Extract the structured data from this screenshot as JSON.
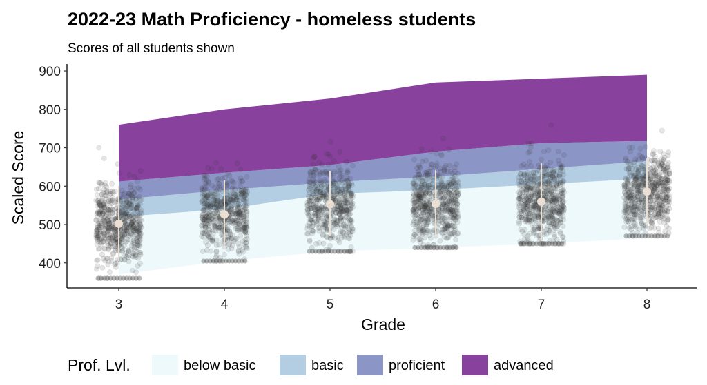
{
  "chart_data": {
    "type": "area",
    "title": "2022-23 Math Proficiency - homeless students",
    "subtitle": "Scores of all students shown",
    "xlabel": "Grade",
    "ylabel": "Scaled Score",
    "categories": [
      "3",
      "4",
      "5",
      "6",
      "7",
      "8"
    ],
    "ylim": [
      335,
      918
    ],
    "yticks": [
      400,
      500,
      600,
      700,
      800,
      900
    ],
    "grid": false,
    "legend": {
      "title": "Prof. Lvl.",
      "position": "bottom",
      "entries": [
        "below basic",
        "basic",
        "proficient",
        "advanced"
      ]
    },
    "bands": [
      {
        "name": "below basic",
        "color": "#eef9fb",
        "lower": [
          370,
          405,
          430,
          440,
          450,
          465
        ],
        "upper": [
          520,
          540,
          580,
          590,
          605,
          620
        ]
      },
      {
        "name": "basic",
        "color": "#b3cde3",
        "lower": [
          520,
          540,
          580,
          590,
          605,
          620
        ],
        "upper": [
          565,
          590,
          610,
          625,
          645,
          665
        ]
      },
      {
        "name": "proficient",
        "color": "#8c96c6",
        "lower": [
          565,
          590,
          610,
          625,
          645,
          665
        ],
        "upper": [
          612,
          635,
          655,
          690,
          712,
          718
        ]
      },
      {
        "name": "advanced",
        "color": "#88419d",
        "lower": [
          612,
          635,
          655,
          690,
          712,
          718
        ],
        "upper": [
          760,
          800,
          828,
          870,
          880,
          890
        ]
      }
    ],
    "scatter": {
      "note": "individual student scores (jittered), simulated to match visible distribution",
      "color": "#333333",
      "groups": [
        {
          "grade": "3",
          "floor": 360,
          "mean": 502,
          "sd": 52,
          "n": 620
        },
        {
          "grade": "4",
          "floor": 405,
          "mean": 526,
          "sd": 50,
          "n": 560
        },
        {
          "grade": "5",
          "floor": 430,
          "mean": 553,
          "sd": 50,
          "n": 540
        },
        {
          "grade": "6",
          "floor": 440,
          "mean": 554,
          "sd": 50,
          "n": 600
        },
        {
          "grade": "7",
          "floor": 450,
          "mean": 560,
          "sd": 52,
          "n": 620
        },
        {
          "grade": "8",
          "floor": 470,
          "mean": 586,
          "sd": 48,
          "n": 620
        }
      ]
    },
    "summary": {
      "color": "#eadfd2",
      "mean": [
        502,
        526,
        553,
        554,
        560,
        586
      ],
      "low": [
        405,
        438,
        470,
        470,
        458,
        500
      ],
      "high": [
        600,
        615,
        640,
        642,
        660,
        672
      ]
    }
  }
}
